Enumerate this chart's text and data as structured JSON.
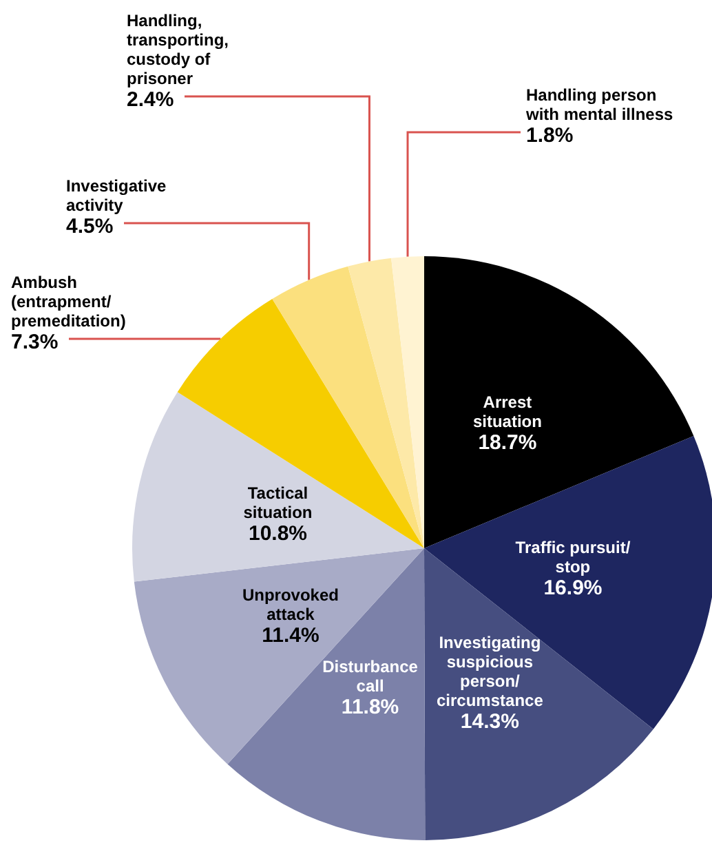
{
  "chart_data": {
    "type": "pie",
    "categories": [
      "Arrest\nsituation",
      "Traffic pursuit/\nstop",
      "Investigating\nsuspicious\nperson/\ncircumstance",
      "Disturbance\ncall",
      "Unprovoked\nattack",
      "Tactical\nsituation",
      "Ambush\n(entrapment/\npremeditation)",
      "Investigative\nactivity",
      "Handling,\ntransporting,\ncustody of\nprisoner",
      "Handling person\nwith mental illness"
    ],
    "values": [
      18.7,
      16.9,
      14.3,
      11.8,
      11.4,
      10.8,
      7.3,
      4.5,
      2.4,
      1.8
    ],
    "value_labels": [
      "18.7%",
      "16.9%",
      "14.3%",
      "11.8%",
      "11.4%",
      "10.8%",
      "7.3%",
      "4.5%",
      "2.4%",
      "1.8%"
    ],
    "colors": [
      "#000000",
      "#1e2660",
      "#464e80",
      "#7c81a9",
      "#a8abc7",
      "#d3d5e2",
      "#f6cd00",
      "#fbe07e",
      "#fde9a8",
      "#fff3d2"
    ],
    "legend": false
  }
}
